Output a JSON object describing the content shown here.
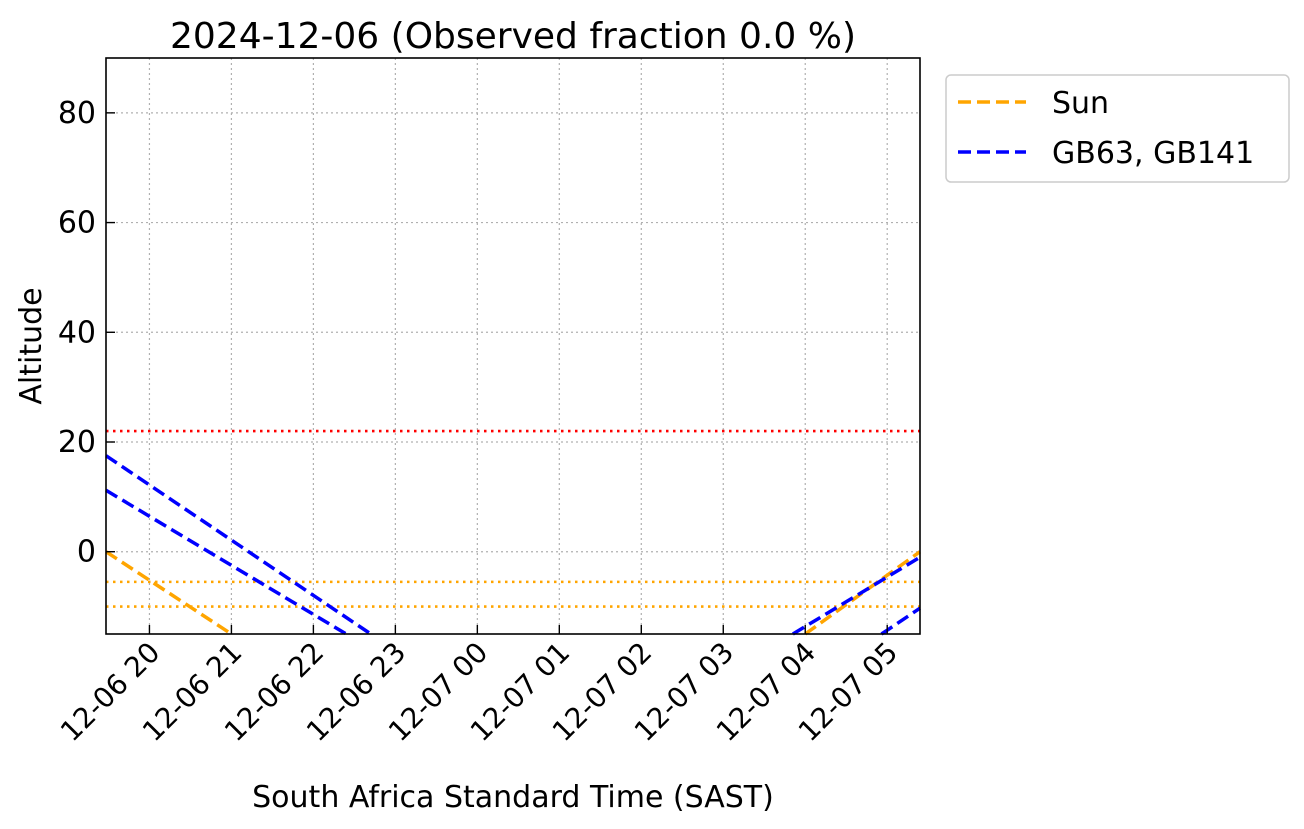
{
  "chart_data": {
    "type": "line",
    "title": "2024-12-06 (Observed fraction 0.0 %)",
    "xlabel": "South Africa Standard Time (SAST)",
    "ylabel": "Altitude",
    "x_unit": "hours (SAST, 2024-12-06 00:00 = 0)",
    "xlim": [
      19.47,
      29.4
    ],
    "ylim": [
      -15,
      90
    ],
    "xticks": [
      {
        "x": 20,
        "label": "12-06 20"
      },
      {
        "x": 21,
        "label": "12-06 21"
      },
      {
        "x": 22,
        "label": "12-06 22"
      },
      {
        "x": 23,
        "label": "12-06 23"
      },
      {
        "x": 24,
        "label": "12-07 00"
      },
      {
        "x": 25,
        "label": "12-07 01"
      },
      {
        "x": 26,
        "label": "12-07 02"
      },
      {
        "x": 27,
        "label": "12-07 03"
      },
      {
        "x": 28,
        "label": "12-07 04"
      },
      {
        "x": 29,
        "label": "12-07 05"
      }
    ],
    "yticks": [
      {
        "y": 0,
        "label": "0"
      },
      {
        "y": 20,
        "label": "20"
      },
      {
        "y": 40,
        "label": "40"
      },
      {
        "y": 60,
        "label": "60"
      },
      {
        "y": 80,
        "label": "80"
      }
    ],
    "grid": true,
    "legend_position": "outside top-right",
    "series": [
      {
        "name": "Sun",
        "color": "#FFA500",
        "style": "dashed",
        "x": [
          19.47,
          21.0
        ],
        "y": [
          0,
          -15
        ]
      },
      {
        "name": "Sun",
        "color": "#FFA500",
        "style": "dashed",
        "x": [
          28.0,
          29.4
        ],
        "y": [
          -15,
          0
        ]
      },
      {
        "name": "GB63, GB141",
        "color": "#0000FF",
        "style": "dashed",
        "x": [
          19.47,
          22.7
        ],
        "y": [
          17.5,
          -15
        ]
      },
      {
        "name": "GB63, GB141",
        "color": "#0000FF",
        "style": "dashed",
        "x": [
          19.47,
          22.4
        ],
        "y": [
          11.2,
          -15
        ]
      },
      {
        "name": "GB63, GB141",
        "color": "#0000FF",
        "style": "dashed",
        "x": [
          27.85,
          29.4
        ],
        "y": [
          -15,
          -1.0
        ]
      },
      {
        "name": "GB63, GB141",
        "color": "#0000FF",
        "style": "dashed",
        "x": [
          28.93,
          29.4
        ],
        "y": [
          -15,
          -10.3
        ]
      }
    ],
    "hlines": [
      {
        "y": 22,
        "color": "#FF0000",
        "style": "dotted"
      },
      {
        "y": -5.5,
        "color": "#FFA500",
        "style": "dotted"
      },
      {
        "y": -10,
        "color": "#FFA500",
        "style": "dotted"
      }
    ],
    "legend": [
      {
        "label": "Sun",
        "color": "#FFA500"
      },
      {
        "label": "GB63, GB141",
        "color": "#0000FF"
      }
    ]
  }
}
